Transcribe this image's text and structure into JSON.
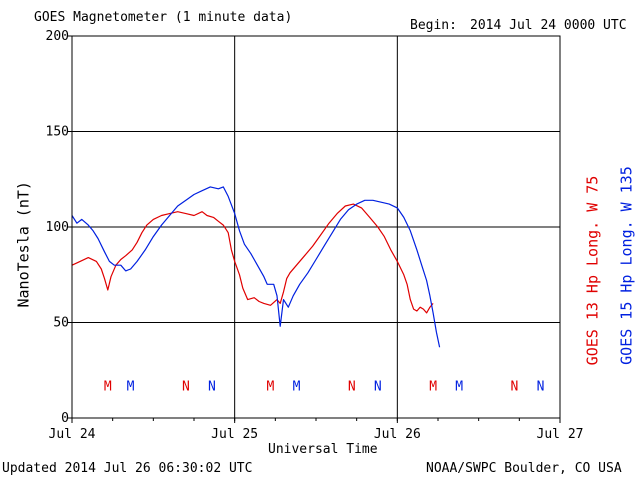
{
  "header": {
    "title": "GOES Magnetometer (1 minute data)",
    "begin_label": "Begin:",
    "begin_value": "2014 Jul 24 0000 UTC"
  },
  "footer": {
    "updated": "Updated 2014 Jul 26 06:30:02 UTC",
    "credit": "NOAA/SWPC Boulder, CO USA"
  },
  "colors": {
    "goes13": "#e00000",
    "goes15": "#0020e0",
    "grid": "#000000"
  },
  "chart_data": {
    "type": "line",
    "ylabel": "NanoTesla (nT)",
    "xlabel": "Universal Time",
    "ylim": [
      0,
      200
    ],
    "yticks": [
      0,
      50,
      100,
      150,
      200
    ],
    "xlim": [
      0,
      3
    ],
    "x_unit": "days since 2014 Jul 24 0000 UTC",
    "xtick_labels": [
      "Jul 24",
      "Jul 25",
      "Jul 26",
      "Jul 27"
    ],
    "grid": true,
    "legend_placement": "right (rotated)",
    "series": [
      {
        "name": "GOES 13 Hp Long. W 75",
        "color": "#e00000",
        "points": [
          [
            0.0,
            80
          ],
          [
            0.05,
            82
          ],
          [
            0.1,
            84
          ],
          [
            0.15,
            82
          ],
          [
            0.18,
            78
          ],
          [
            0.2,
            73
          ],
          [
            0.22,
            67
          ],
          [
            0.24,
            74
          ],
          [
            0.27,
            80
          ],
          [
            0.3,
            83
          ],
          [
            0.33,
            85
          ],
          [
            0.37,
            88
          ],
          [
            0.4,
            92
          ],
          [
            0.43,
            97
          ],
          [
            0.46,
            101
          ],
          [
            0.5,
            104
          ],
          [
            0.55,
            106
          ],
          [
            0.6,
            107
          ],
          [
            0.65,
            108
          ],
          [
            0.7,
            107
          ],
          [
            0.75,
            106
          ],
          [
            0.8,
            108
          ],
          [
            0.83,
            106
          ],
          [
            0.87,
            105
          ],
          [
            0.9,
            103
          ],
          [
            0.93,
            101
          ],
          [
            0.96,
            97
          ],
          [
            0.98,
            88
          ],
          [
            1.0,
            82
          ],
          [
            1.03,
            75
          ],
          [
            1.05,
            68
          ],
          [
            1.08,
            62
          ],
          [
            1.12,
            63
          ],
          [
            1.15,
            61
          ],
          [
            1.18,
            60
          ],
          [
            1.22,
            59
          ],
          [
            1.26,
            62
          ],
          [
            1.28,
            60
          ],
          [
            1.3,
            66
          ],
          [
            1.32,
            73
          ],
          [
            1.34,
            76
          ],
          [
            1.38,
            80
          ],
          [
            1.43,
            85
          ],
          [
            1.48,
            90
          ],
          [
            1.53,
            96
          ],
          [
            1.58,
            102
          ],
          [
            1.63,
            107
          ],
          [
            1.68,
            111
          ],
          [
            1.73,
            112
          ],
          [
            1.78,
            110
          ],
          [
            1.83,
            105
          ],
          [
            1.88,
            100
          ],
          [
            1.92,
            95
          ],
          [
            1.96,
            88
          ],
          [
            2.0,
            82
          ],
          [
            2.04,
            75
          ],
          [
            2.06,
            70
          ],
          [
            2.08,
            62
          ],
          [
            2.1,
            57
          ],
          [
            2.12,
            56
          ],
          [
            2.14,
            58
          ],
          [
            2.16,
            57
          ],
          [
            2.18,
            55
          ],
          [
            2.2,
            58
          ],
          [
            2.22,
            60
          ]
        ]
      },
      {
        "name": "GOES 15 Hp Long. W 135",
        "color": "#0020e0",
        "points": [
          [
            0.0,
            106
          ],
          [
            0.03,
            102
          ],
          [
            0.06,
            104
          ],
          [
            0.1,
            101
          ],
          [
            0.13,
            98
          ],
          [
            0.16,
            94
          ],
          [
            0.2,
            87
          ],
          [
            0.23,
            82
          ],
          [
            0.26,
            80
          ],
          [
            0.3,
            80
          ],
          [
            0.33,
            77
          ],
          [
            0.36,
            78
          ],
          [
            0.4,
            82
          ],
          [
            0.45,
            88
          ],
          [
            0.5,
            95
          ],
          [
            0.55,
            101
          ],
          [
            0.6,
            106
          ],
          [
            0.65,
            111
          ],
          [
            0.7,
            114
          ],
          [
            0.75,
            117
          ],
          [
            0.8,
            119
          ],
          [
            0.85,
            121
          ],
          [
            0.9,
            120
          ],
          [
            0.93,
            121
          ],
          [
            0.96,
            116
          ],
          [
            1.0,
            107
          ],
          [
            1.03,
            98
          ],
          [
            1.06,
            91
          ],
          [
            1.1,
            86
          ],
          [
            1.14,
            80
          ],
          [
            1.18,
            74
          ],
          [
            1.2,
            70
          ],
          [
            1.24,
            70
          ],
          [
            1.26,
            64
          ],
          [
            1.28,
            48
          ],
          [
            1.3,
            62
          ],
          [
            1.33,
            58
          ],
          [
            1.36,
            64
          ],
          [
            1.4,
            70
          ],
          [
            1.45,
            76
          ],
          [
            1.5,
            83
          ],
          [
            1.55,
            90
          ],
          [
            1.6,
            97
          ],
          [
            1.65,
            104
          ],
          [
            1.7,
            109
          ],
          [
            1.75,
            112
          ],
          [
            1.8,
            114
          ],
          [
            1.85,
            114
          ],
          [
            1.9,
            113
          ],
          [
            1.95,
            112
          ],
          [
            2.0,
            110
          ],
          [
            2.04,
            105
          ],
          [
            2.08,
            98
          ],
          [
            2.12,
            88
          ],
          [
            2.15,
            80
          ],
          [
            2.18,
            72
          ],
          [
            2.2,
            64
          ],
          [
            2.22,
            55
          ],
          [
            2.24,
            45
          ],
          [
            2.26,
            37
          ]
        ]
      }
    ],
    "markers": [
      {
        "label": "M",
        "x": 0.22,
        "color": "#e00000"
      },
      {
        "label": "M",
        "x": 0.36,
        "color": "#0020e0"
      },
      {
        "label": "N",
        "x": 0.7,
        "color": "#e00000"
      },
      {
        "label": "N",
        "x": 0.86,
        "color": "#0020e0"
      },
      {
        "label": "M",
        "x": 1.22,
        "color": "#e00000"
      },
      {
        "label": "M",
        "x": 1.38,
        "color": "#0020e0"
      },
      {
        "label": "N",
        "x": 1.72,
        "color": "#e00000"
      },
      {
        "label": "N",
        "x": 1.88,
        "color": "#0020e0"
      },
      {
        "label": "M",
        "x": 2.22,
        "color": "#e00000"
      },
      {
        "label": "M",
        "x": 2.38,
        "color": "#0020e0"
      },
      {
        "label": "N",
        "x": 2.72,
        "color": "#e00000"
      },
      {
        "label": "N",
        "x": 2.88,
        "color": "#0020e0"
      }
    ],
    "marker_level": 17
  }
}
